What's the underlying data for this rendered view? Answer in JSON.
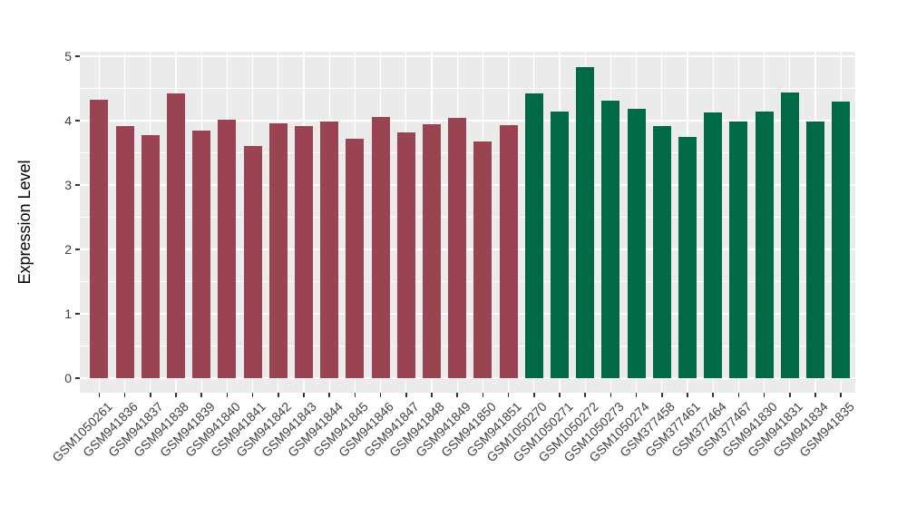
{
  "figure": {
    "ylabel": "Expression Level",
    "panel_background": "#EBEBEB",
    "gridline_color": "#FFFFFF",
    "axis_text_color": "#404040",
    "tick_mark_color": "#333333",
    "outer_background": "#FFFFFF"
  },
  "chart_data": {
    "type": "bar",
    "title": "",
    "xlabel": "",
    "ylabel": "Expression Level",
    "ylim": [
      0,
      5
    ],
    "yticks": [
      0,
      1,
      2,
      3,
      4,
      5
    ],
    "minor_gridlines": [
      0.5,
      1.5,
      2.5,
      3.5,
      4.5
    ],
    "grid": "major-and-minor-white-on-gray",
    "legend": "none",
    "x_tick_rotation_deg": 45,
    "categories": [
      "GSM1050261",
      "GSM941836",
      "GSM941837",
      "GSM941838",
      "GSM941839",
      "GSM941840",
      "GSM941841",
      "GSM941842",
      "GSM941843",
      "GSM941844",
      "GSM941845",
      "GSM941846",
      "GSM941847",
      "GSM941848",
      "GSM941849",
      "GSM941850",
      "GSM941851",
      "GSM1050270",
      "GSM1050271",
      "GSM1050272",
      "GSM1050273",
      "GSM1050274",
      "GSM377458",
      "GSM377461",
      "GSM377464",
      "GSM377467",
      "GSM941830",
      "GSM941831",
      "GSM941834",
      "GSM941835"
    ],
    "values": [
      4.33,
      3.91,
      3.78,
      4.42,
      3.85,
      4.02,
      3.61,
      3.96,
      3.91,
      3.99,
      3.72,
      4.05,
      3.81,
      3.95,
      4.04,
      3.67,
      3.93,
      4.42,
      4.14,
      4.83,
      4.31,
      4.19,
      3.91,
      3.75,
      4.13,
      3.99,
      4.14,
      4.44,
      3.98,
      4.29
    ],
    "groups": [
      "group1",
      "group1",
      "group1",
      "group1",
      "group1",
      "group1",
      "group1",
      "group1",
      "group1",
      "group1",
      "group1",
      "group1",
      "group1",
      "group1",
      "group1",
      "group1",
      "group1",
      "group2",
      "group2",
      "group2",
      "group2",
      "group2",
      "group2",
      "group2",
      "group2",
      "group2",
      "group2",
      "group2",
      "group2",
      "group2"
    ],
    "group_colors": {
      "group1": "#9A4453",
      "group2": "#006948"
    }
  }
}
